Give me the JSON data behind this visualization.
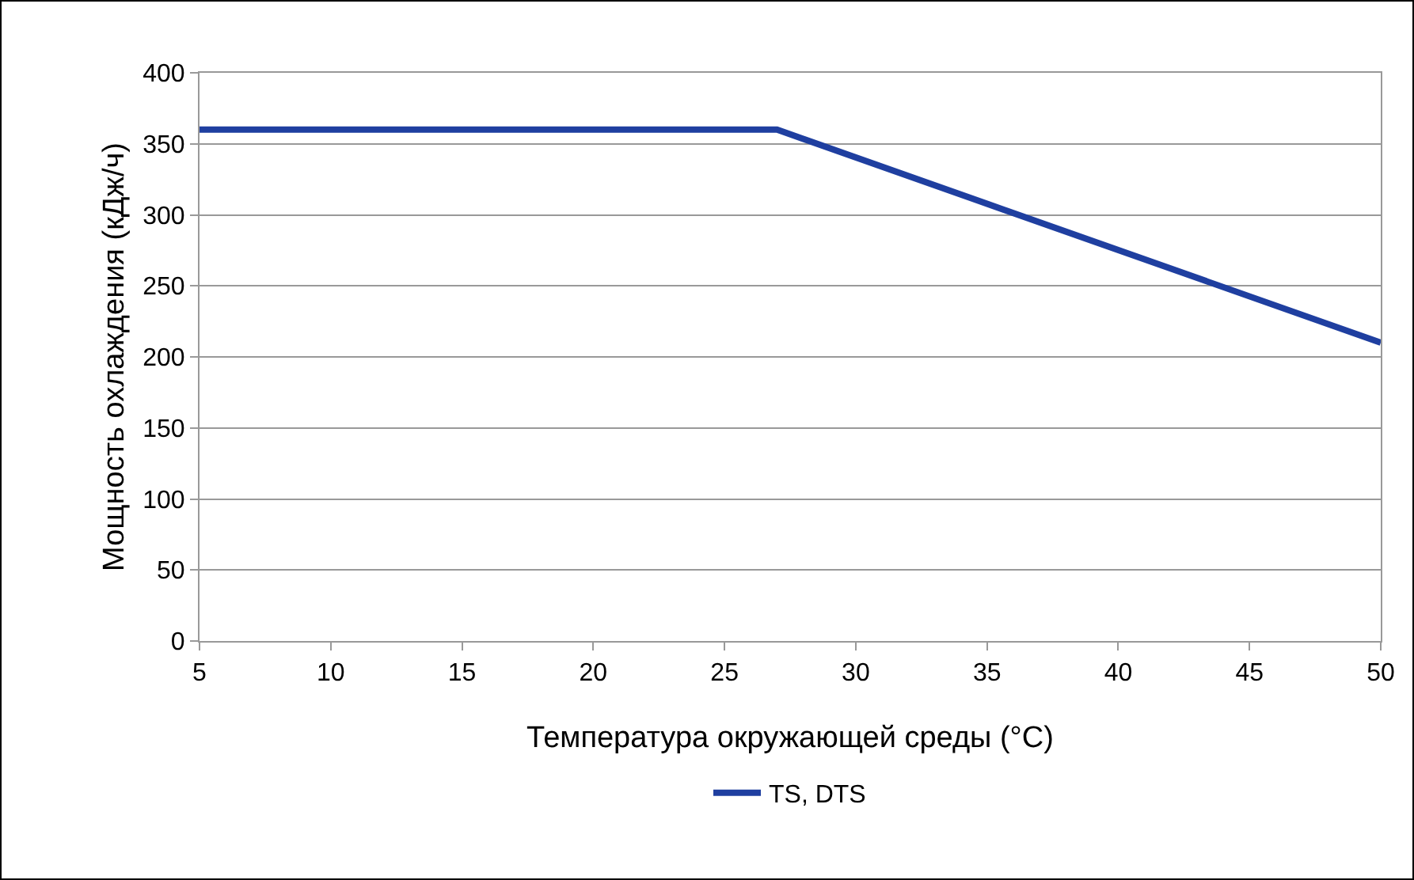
{
  "chart_data": {
    "type": "line",
    "xlabel": "Температура окружающей среды (°C)",
    "ylabel": "Мощность охлаждения (кДж/ч)",
    "series": [
      {
        "name": "TS, DTS",
        "color": "#1f3fa0",
        "x": [
          5,
          27,
          50
        ],
        "values": [
          360,
          360,
          210
        ]
      }
    ],
    "xlim": [
      5,
      50
    ],
    "xticks": [
      5,
      10,
      15,
      20,
      25,
      30,
      35,
      40,
      45,
      50
    ],
    "ylim": [
      0,
      400
    ],
    "yticks": [
      0,
      50,
      100,
      150,
      200,
      250,
      300,
      350,
      400
    ],
    "grid": "y",
    "legend": "bottom",
    "marker": "none",
    "line_style": "solid"
  }
}
